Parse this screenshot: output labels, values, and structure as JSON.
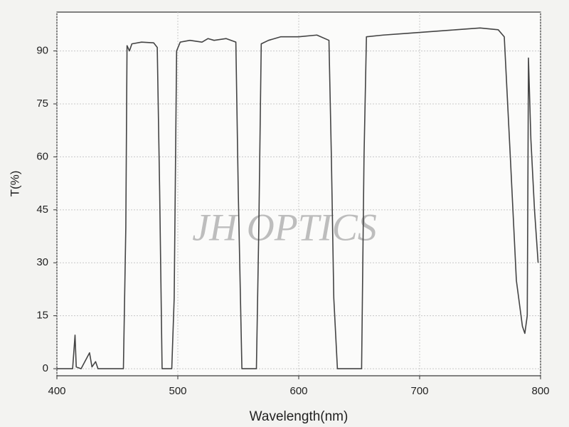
{
  "chart_data": {
    "type": "line",
    "xlabel": "Wavelength(nm)",
    "ylabel": "T(%)",
    "annotation": "JH OPTICS",
    "xlim": [
      400,
      800
    ],
    "ylim": [
      -2,
      101
    ],
    "xticks": [
      400,
      500,
      600,
      700,
      800
    ],
    "yticks": [
      0,
      15,
      30,
      45,
      60,
      75,
      90
    ],
    "grid": true,
    "series": [
      {
        "color": "#444444",
        "x": [
          400,
          413,
          415,
          416,
          420,
          427,
          429,
          432,
          434,
          455,
          457,
          458,
          460,
          462,
          470,
          480,
          483,
          485,
          487,
          495,
          497,
          499,
          502,
          510,
          520,
          525,
          530,
          540,
          548,
          550,
          553,
          565,
          567,
          569,
          575,
          585,
          600,
          615,
          625,
          627,
          629,
          632,
          652,
          654,
          656,
          670,
          690,
          710,
          730,
          750,
          765,
          770,
          775,
          780,
          785,
          787,
          789,
          789.5,
          790,
          792,
          795,
          798
        ],
        "values": [
          0,
          0,
          9.5,
          0.5,
          0,
          4.5,
          0.5,
          2,
          0,
          0,
          40,
          91.5,
          90,
          92,
          92.5,
          92.3,
          91,
          50,
          0,
          0,
          20,
          90,
          92.5,
          93,
          92.5,
          93.5,
          93,
          93.5,
          92.5,
          50,
          0,
          0,
          40,
          92,
          93,
          94,
          94,
          94.5,
          93,
          60,
          20,
          0,
          0,
          60,
          94,
          94.5,
          95,
          95.5,
          96,
          96.5,
          96,
          94,
          60,
          25,
          12,
          10,
          15,
          50,
          88,
          65,
          45,
          30
        ]
      }
    ]
  }
}
